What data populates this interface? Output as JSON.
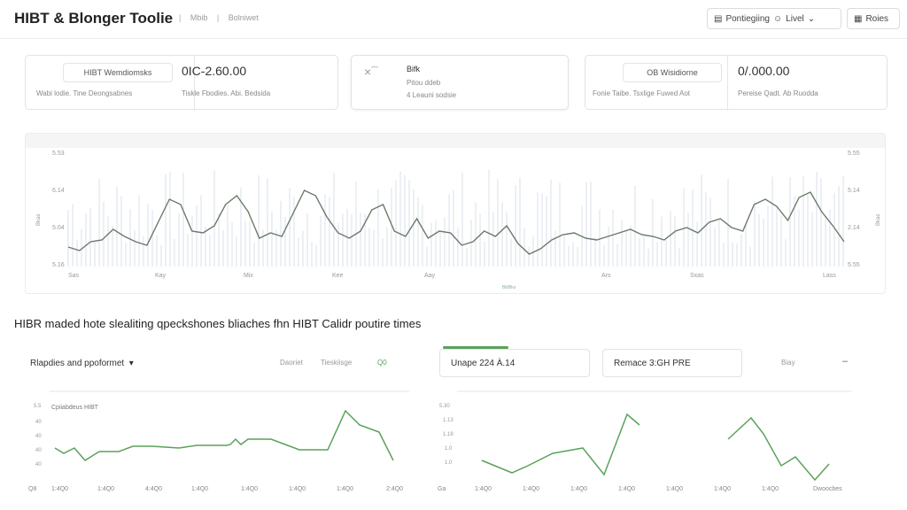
{
  "header": {
    "app_title": "HIBT & Blonger Toolie",
    "nav_links": [
      "Mbib",
      "Bolniwet"
    ],
    "btn_range_label": "Pontiegiing",
    "btn_level_label": "Livel",
    "btn_notes_label": "Roies"
  },
  "cards": [
    {
      "pill": "HIBT Wemdiomsks",
      "value": "0IC-2.60.00",
      "sub_left": "Wabi lodie. Tine Deongsabnes",
      "sub_right": "Tiskle Fbodies. Abi. Bedsida"
    },
    {
      "icon": "×¯",
      "title": "Bifk",
      "sub1": "Pitou ddeb",
      "sub2": "4 Leauni sodsie"
    },
    {
      "pill": "OB Wisidiorne",
      "value": "0/.000.00",
      "sub_left": "Fonie Taibe. Tsxlige Fuwed Aot",
      "sub_right": "Pereise Qadt. Ab Ruodda"
    }
  ],
  "main_chart_axis": {
    "y_left": [
      "5.53",
      "6.14",
      "5.04",
      "5.16"
    ],
    "y_right": [
      "5.55",
      "5.14",
      "2.14",
      "5.55"
    ],
    "x_labels": [
      "Sas",
      "Kay",
      "Mix",
      "Kee",
      "Aay",
      "Ars",
      "Sxas",
      "Lass"
    ],
    "left_axis_title": "Bkas",
    "right_axis_title": "Bkas",
    "legend_hint": "BkBlks"
  },
  "section_heading": "HIBR maded hote slealiting qpeckshones bliaches fhn HIBT Calidr poutire times",
  "left_panel": {
    "title": "Rlapdies and ppoformet",
    "controls": [
      "Daoriet",
      "Tieskiisge",
      "Q0"
    ],
    "series_label": "Cpiiabdeus HIBT",
    "y_labels": [
      "5.5",
      "40",
      "40",
      "40",
      "40"
    ],
    "x_labels": [
      "Q8",
      "1:4Q0",
      "1:4Q0",
      "4:4Q0",
      "1:4Q0",
      "1:4Q0",
      "1:4Q0",
      "1:4Q0",
      "1:4Q0",
      "2:4Q0"
    ]
  },
  "right_panel": {
    "box1_label": "Unape 224 À.14",
    "box2_label": "Remace 3:GH PRE",
    "tag": "Biay",
    "menu_icon": "–",
    "y_labels": [
      "5.30",
      "1.13",
      "1.18",
      "1.0",
      "1.0"
    ],
    "x_labels": [
      "Ga",
      "1:4Q0",
      "1:4Q0",
      "1:4Q0",
      "1:4Q0",
      "1:4Q0",
      "1:4Q0",
      "1:4Q0",
      "Dwoocbes"
    ]
  },
  "colors": {
    "accent_green": "#5aa25a",
    "line_gray": "#d9e2ea"
  },
  "icons": [
    "filter-icon",
    "person-icon",
    "chevron-down-icon",
    "grid-icon",
    "close-icon",
    "menu-icon"
  ]
}
